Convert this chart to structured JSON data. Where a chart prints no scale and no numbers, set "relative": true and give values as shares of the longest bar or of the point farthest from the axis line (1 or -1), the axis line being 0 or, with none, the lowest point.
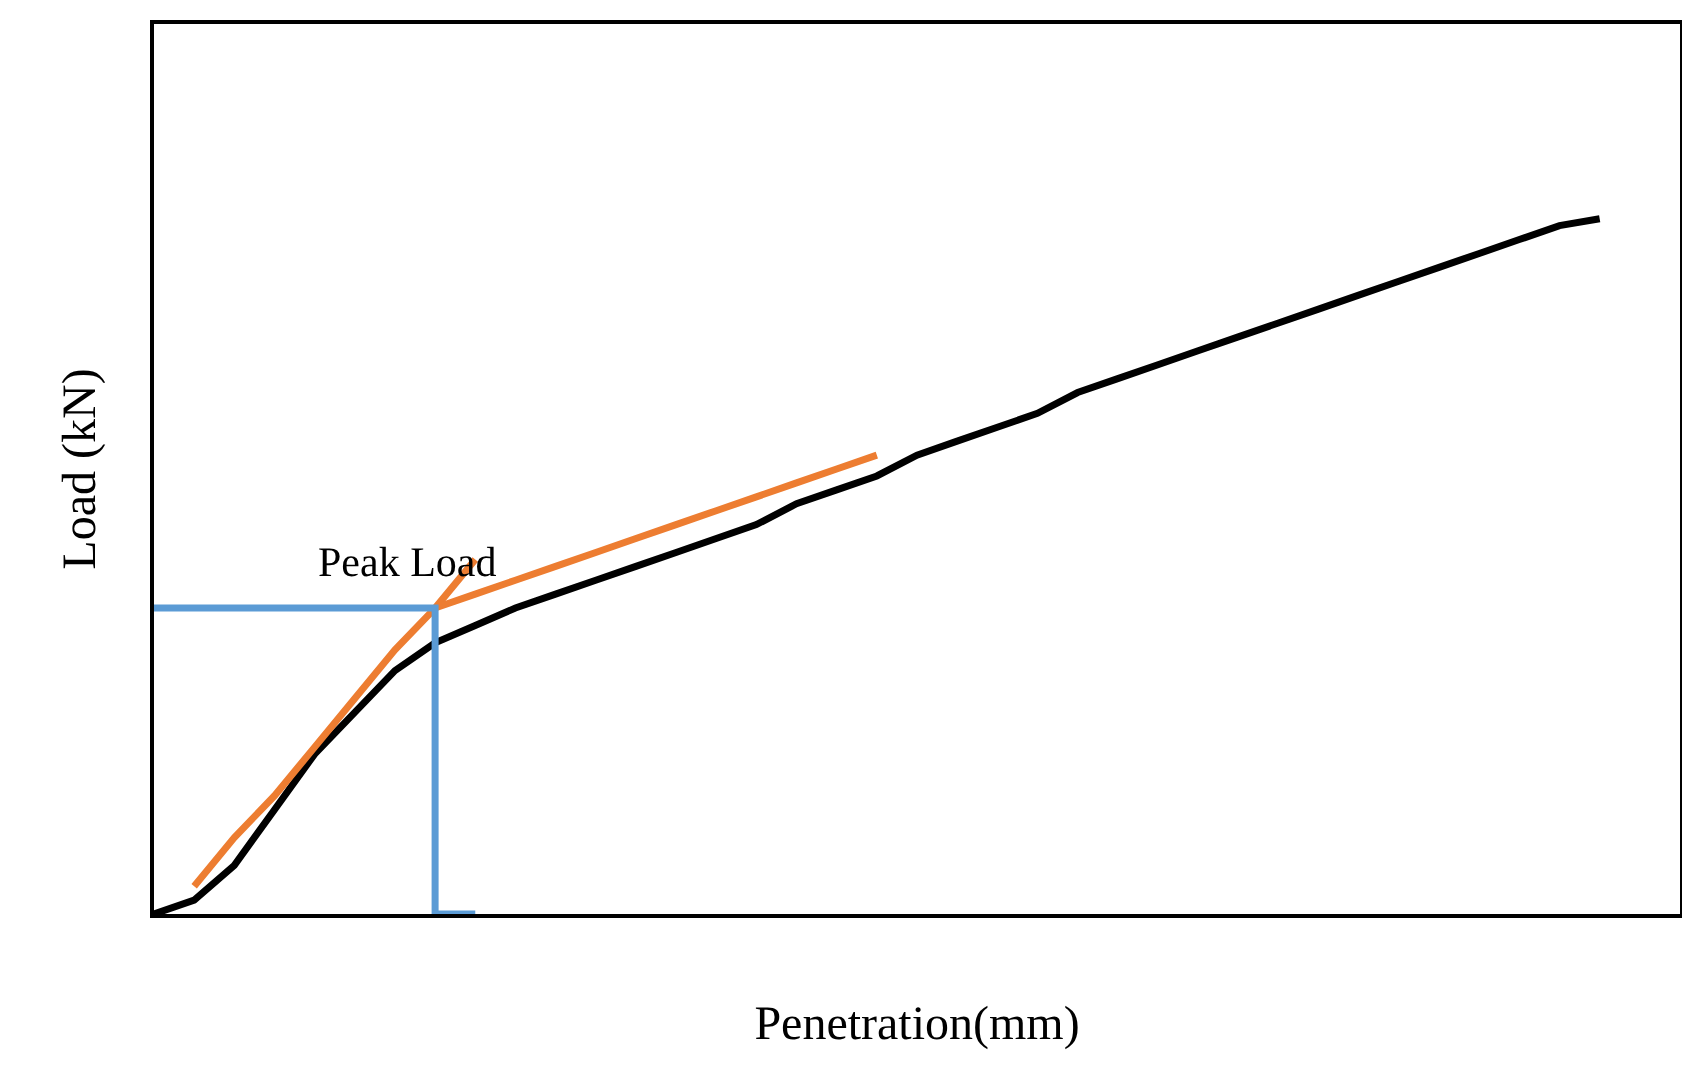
{
  "chart_data": {
    "type": "line",
    "relative": true,
    "xlabel": "Penetration(mm)",
    "ylabel": "Load (kN)",
    "categories": [
      null,
      null,
      null,
      null,
      null,
      null,
      null,
      null,
      null,
      null,
      null,
      null,
      null,
      null,
      null,
      null,
      null,
      null,
      null,
      null,
      null,
      null,
      null,
      null,
      null,
      null,
      null,
      null,
      null,
      null,
      null,
      null,
      null,
      null,
      null,
      null,
      null,
      null,
      null
    ],
    "series": [
      {
        "color": "#000000",
        "values": [
          0,
          0.02,
          0.07,
          0.15,
          0.23,
          0.29,
          0.35,
          0.39,
          0.415,
          0.44,
          0.46,
          0.48,
          0.5,
          0.52,
          0.54,
          0.56,
          0.59,
          0.61,
          0.63,
          0.66,
          0.68,
          0.7,
          0.72,
          0.75,
          0.77,
          0.79,
          0.81,
          0.83,
          0.85,
          0.87,
          0.89,
          0.91,
          0.93,
          0.95,
          0.97,
          0.99,
          1,
          null,
          null
        ]
      },
      {
        "color": "#ed7d31",
        "values": [
          null,
          0.04,
          0.11,
          0.17,
          0.24,
          0.31,
          0.38,
          0.44,
          0.51,
          null,
          null,
          null,
          null,
          null,
          null,
          null,
          null,
          null,
          null,
          null,
          null,
          null,
          null,
          null,
          null,
          null,
          null,
          null,
          null,
          null,
          null,
          null,
          null,
          null,
          null,
          null,
          null,
          null,
          null
        ]
      },
      {
        "color": "#ed7d31",
        "values": [
          null,
          null,
          null,
          null,
          null,
          null,
          null,
          0.44,
          0.46,
          0.48,
          0.5,
          0.52,
          0.54,
          0.56,
          0.58,
          0.6,
          0.62,
          0.64,
          0.66,
          null,
          null,
          null,
          null,
          null,
          null,
          null,
          null,
          null,
          null,
          null,
          null,
          null,
          null,
          null,
          null,
          null,
          null,
          null,
          null
        ]
      },
      {
        "type": "step",
        "color": "#5b9bd5",
        "values": [
          0.44,
          0.44,
          0.44,
          0.44,
          0.44,
          0.44,
          0.44,
          0.44,
          0,
          null,
          null,
          null,
          null,
          null,
          null,
          null,
          null,
          null,
          null,
          null,
          null,
          null,
          null,
          null,
          null,
          null,
          null,
          null,
          null,
          null,
          null,
          null,
          null,
          null,
          null,
          null,
          null,
          null,
          null
        ]
      }
    ],
    "annotations": [
      "Peak Load"
    ],
    "grid": false,
    "marker": "none",
    "line_style": "solid"
  }
}
